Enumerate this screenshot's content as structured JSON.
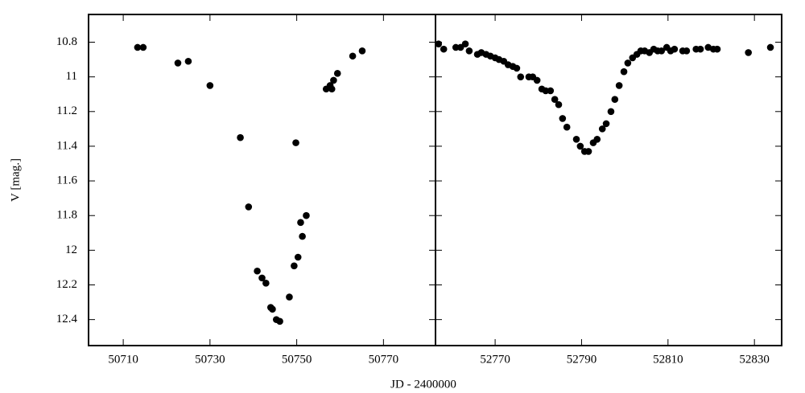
{
  "chart_data": [
    {
      "type": "scatter",
      "xlabel": "JD - 2400000",
      "ylabel": "V [mag.]",
      "color": "#000000",
      "y_inverted": true,
      "xlim": [
        50702,
        50782
      ],
      "xticks": [
        50710,
        50730,
        50750,
        50770
      ],
      "ylim": [
        10.64,
        12.55
      ],
      "yticks": [
        10.8,
        11,
        11.2,
        11.4,
        11.6,
        11.8,
        12,
        12.2,
        12.4
      ],
      "x": [
        50713.3,
        50714.6,
        50722.6,
        50725.0,
        50730.0,
        50737.0,
        50738.9,
        50740.9,
        50742.0,
        50742.9,
        50744.0,
        50744.4,
        50745.3,
        50746.1,
        50748.3,
        50749.4,
        50750.3,
        50750.9,
        50751.3,
        50752.2,
        50749.8,
        50756.8,
        50757.7,
        50758.1,
        50758.5,
        50759.4,
        50762.9,
        50765.1
      ],
      "values": [
        10.83,
        10.83,
        10.92,
        10.91,
        11.05,
        11.35,
        11.75,
        12.12,
        12.16,
        12.19,
        12.33,
        12.34,
        12.4,
        12.41,
        12.27,
        12.09,
        12.04,
        11.84,
        11.92,
        11.8,
        11.38,
        11.07,
        11.05,
        11.07,
        11.02,
        10.98,
        10.88,
        10.85
      ]
    },
    {
      "type": "scatter",
      "color": "#000000",
      "y_inverted": true,
      "xlim": [
        52756.2,
        52836.3
      ],
      "xticks": [
        52770,
        52790,
        52810,
        52830
      ],
      "ylim": [
        10.64,
        12.55
      ],
      "x": [
        52756.9,
        52758.1,
        52760.9,
        52762.0,
        52763.1,
        52764.0,
        52765.9,
        52766.8,
        52767.9,
        52768.9,
        52770.0,
        52770.9,
        52772.0,
        52773.0,
        52774.1,
        52775.0,
        52775.9,
        52777.8,
        52778.7,
        52779.7,
        52780.8,
        52781.7,
        52782.8,
        52783.8,
        52784.7,
        52785.6,
        52786.6,
        52788.8,
        52789.7,
        52790.7,
        52791.6,
        52792.7,
        52793.6,
        52794.8,
        52795.7,
        52796.8,
        52797.7,
        52798.7,
        52799.8,
        52800.7,
        52801.8,
        52802.8,
        52803.7,
        52804.6,
        52805.7,
        52806.7,
        52807.6,
        52808.5,
        52809.7,
        52810.6,
        52811.5,
        52813.4,
        52814.3,
        52816.5,
        52817.5,
        52819.3,
        52820.5,
        52821.4,
        52828.6,
        52833.7
      ],
      "values": [
        10.81,
        10.84,
        10.83,
        10.83,
        10.81,
        10.85,
        10.87,
        10.86,
        10.87,
        10.88,
        10.89,
        10.9,
        10.91,
        10.93,
        10.94,
        10.95,
        11.0,
        11.0,
        11.0,
        11.02,
        11.07,
        11.08,
        11.08,
        11.13,
        11.16,
        11.24,
        11.29,
        11.36,
        11.4,
        11.43,
        11.43,
        11.38,
        11.36,
        11.3,
        11.27,
        11.2,
        11.13,
        11.05,
        10.97,
        10.92,
        10.89,
        10.87,
        10.85,
        10.85,
        10.86,
        10.84,
        10.85,
        10.85,
        10.83,
        10.85,
        10.84,
        10.85,
        10.85,
        10.84,
        10.84,
        10.83,
        10.84,
        10.84,
        10.86,
        10.83
      ]
    }
  ]
}
